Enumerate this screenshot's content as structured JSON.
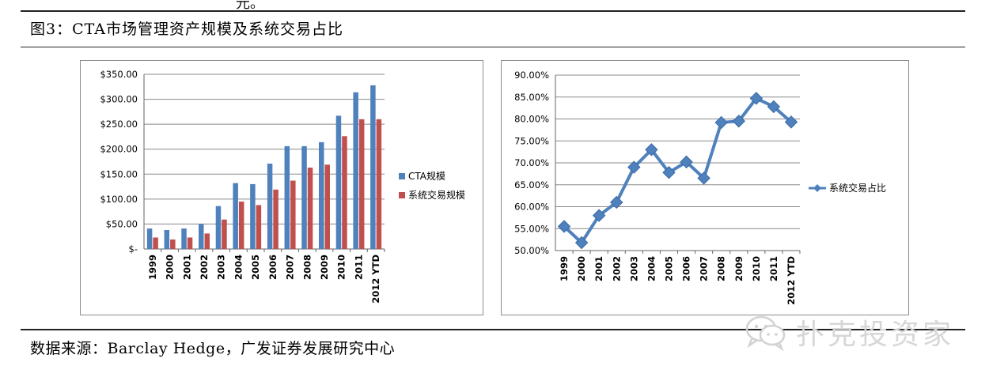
{
  "top_fragment": "元。",
  "figure_title": "图3：CTA市场管理资产规模及系统交易占比",
  "source_note": "数据来源：Barclay Hedge，广发证券发展研究中心",
  "watermark": {
    "text": "扑克投资家",
    "icon": "wechat-logo-icon"
  },
  "colors": {
    "cta": "#4f81bd",
    "systematic": "#c0504d",
    "line": "#4f81bd",
    "grid": "#8a8a8a"
  },
  "chart_data": [
    {
      "type": "bar",
      "categories": [
        "1999",
        "2000",
        "2001",
        "2002",
        "2003",
        "2004",
        "2005",
        "2006",
        "2007",
        "2008",
        "2009",
        "2010",
        "2011",
        "2012 YTD"
      ],
      "series": [
        {
          "name": "CTA规模",
          "values": [
            41,
            38,
            41,
            50,
            86,
            132,
            130,
            171,
            206,
            206,
            214,
            267,
            314,
            328
          ]
        },
        {
          "name": "系统交易规模",
          "values": [
            23,
            19,
            23,
            31,
            59,
            95,
            88,
            119,
            137,
            163,
            169,
            226,
            260,
            260
          ]
        }
      ],
      "ylim": [
        0,
        350
      ],
      "yticks": [
        0,
        50,
        100,
        150,
        200,
        250,
        300,
        350
      ],
      "ytick_labels": [
        "$-",
        "$50.00",
        "$100.00",
        "$150.00",
        "$200.00",
        "$250.00",
        "$300.00",
        "$350.00"
      ],
      "grid": true,
      "legend": "right"
    },
    {
      "type": "line",
      "categories": [
        "1999",
        "2000",
        "2001",
        "2002",
        "2003",
        "2004",
        "2005",
        "2006",
        "2007",
        "2008",
        "2009",
        "2010",
        "2011",
        "2012 YTD"
      ],
      "series": [
        {
          "name": "系统交易占比",
          "values": [
            55.5,
            51.8,
            58.0,
            61.0,
            69.0,
            73.0,
            67.8,
            70.2,
            66.5,
            79.2,
            79.5,
            84.7,
            82.8,
            79.3
          ]
        }
      ],
      "ylim": [
        50,
        90
      ],
      "yticks": [
        50,
        55,
        60,
        65,
        70,
        75,
        80,
        85,
        90
      ],
      "ytick_labels": [
        "50.00%",
        "55.00%",
        "60.00%",
        "65.00%",
        "70.00%",
        "75.00%",
        "80.00%",
        "85.00%",
        "90.00%"
      ],
      "grid": true,
      "legend": "right"
    }
  ]
}
